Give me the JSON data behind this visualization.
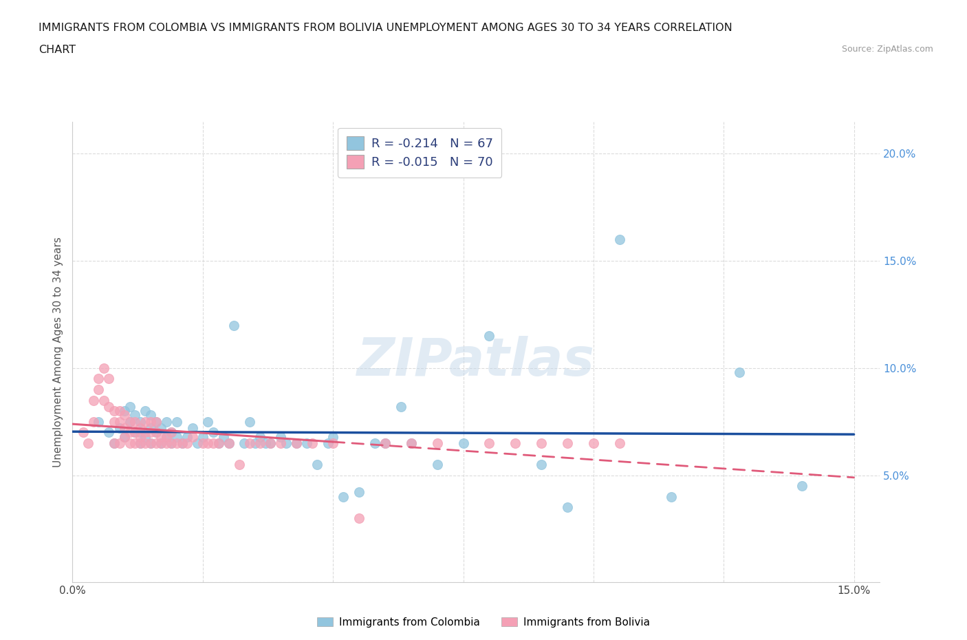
{
  "title_line1": "IMMIGRANTS FROM COLOMBIA VS IMMIGRANTS FROM BOLIVIA UNEMPLOYMENT AMONG AGES 30 TO 34 YEARS CORRELATION",
  "title_line2": "CHART",
  "source_text": "Source: ZipAtlas.com",
  "ylabel": "Unemployment Among Ages 30 to 34 years",
  "xlim": [
    0.0,
    0.155
  ],
  "ylim": [
    0.0,
    0.215
  ],
  "colombia_color": "#92c5de",
  "bolivia_color": "#f4a0b5",
  "colombia_line_color": "#1b4f9e",
  "bolivia_line_color": "#e05a7a",
  "legend_R_colombia": "-0.214",
  "legend_N_colombia": "67",
  "legend_R_bolivia": "-0.015",
  "legend_N_bolivia": "70",
  "colombia_points_x": [
    0.005,
    0.007,
    0.008,
    0.009,
    0.01,
    0.01,
    0.011,
    0.011,
    0.012,
    0.012,
    0.013,
    0.013,
    0.013,
    0.014,
    0.014,
    0.015,
    0.015,
    0.015,
    0.016,
    0.016,
    0.017,
    0.017,
    0.018,
    0.018,
    0.019,
    0.019,
    0.02,
    0.02,
    0.021,
    0.022,
    0.023,
    0.024,
    0.025,
    0.026,
    0.027,
    0.028,
    0.029,
    0.03,
    0.031,
    0.033,
    0.034,
    0.035,
    0.036,
    0.037,
    0.038,
    0.04,
    0.041,
    0.043,
    0.045,
    0.047,
    0.049,
    0.05,
    0.052,
    0.055,
    0.058,
    0.06,
    0.063,
    0.065,
    0.07,
    0.075,
    0.08,
    0.09,
    0.095,
    0.105,
    0.115,
    0.128,
    0.14
  ],
  "colombia_points_y": [
    0.075,
    0.07,
    0.065,
    0.072,
    0.08,
    0.068,
    0.075,
    0.082,
    0.07,
    0.078,
    0.065,
    0.07,
    0.075,
    0.068,
    0.08,
    0.065,
    0.072,
    0.078,
    0.07,
    0.075,
    0.065,
    0.072,
    0.068,
    0.075,
    0.065,
    0.07,
    0.068,
    0.075,
    0.065,
    0.068,
    0.072,
    0.065,
    0.068,
    0.075,
    0.07,
    0.065,
    0.068,
    0.065,
    0.12,
    0.065,
    0.075,
    0.065,
    0.068,
    0.065,
    0.065,
    0.068,
    0.065,
    0.065,
    0.065,
    0.055,
    0.065,
    0.068,
    0.04,
    0.042,
    0.065,
    0.065,
    0.082,
    0.065,
    0.055,
    0.065,
    0.115,
    0.055,
    0.035,
    0.16,
    0.04,
    0.098,
    0.045
  ],
  "bolivia_points_x": [
    0.002,
    0.003,
    0.004,
    0.004,
    0.005,
    0.005,
    0.006,
    0.006,
    0.007,
    0.007,
    0.008,
    0.008,
    0.008,
    0.009,
    0.009,
    0.009,
    0.01,
    0.01,
    0.01,
    0.011,
    0.011,
    0.011,
    0.012,
    0.012,
    0.012,
    0.013,
    0.013,
    0.013,
    0.014,
    0.014,
    0.014,
    0.015,
    0.015,
    0.015,
    0.016,
    0.016,
    0.016,
    0.017,
    0.017,
    0.018,
    0.018,
    0.019,
    0.019,
    0.02,
    0.021,
    0.022,
    0.023,
    0.025,
    0.026,
    0.027,
    0.028,
    0.03,
    0.032,
    0.034,
    0.036,
    0.038,
    0.04,
    0.043,
    0.046,
    0.05,
    0.055,
    0.06,
    0.065,
    0.07,
    0.08,
    0.085,
    0.09,
    0.095,
    0.1,
    0.105
  ],
  "bolivia_points_y": [
    0.07,
    0.065,
    0.075,
    0.085,
    0.09,
    0.095,
    0.1,
    0.085,
    0.095,
    0.082,
    0.065,
    0.075,
    0.08,
    0.065,
    0.075,
    0.08,
    0.068,
    0.072,
    0.078,
    0.065,
    0.07,
    0.075,
    0.065,
    0.07,
    0.075,
    0.065,
    0.068,
    0.072,
    0.065,
    0.07,
    0.075,
    0.065,
    0.07,
    0.075,
    0.065,
    0.07,
    0.075,
    0.065,
    0.068,
    0.065,
    0.068,
    0.065,
    0.07,
    0.065,
    0.065,
    0.065,
    0.068,
    0.065,
    0.065,
    0.065,
    0.065,
    0.065,
    0.055,
    0.065,
    0.065,
    0.065,
    0.065,
    0.065,
    0.065,
    0.065,
    0.03,
    0.065,
    0.065,
    0.065,
    0.065,
    0.065,
    0.065,
    0.065,
    0.065,
    0.065
  ],
  "watermark": "ZIPatlas",
  "grid_color": "#d8d8d8",
  "right_ytick_color": "#4a90d9",
  "legend_text_color": "#2c3e7a"
}
